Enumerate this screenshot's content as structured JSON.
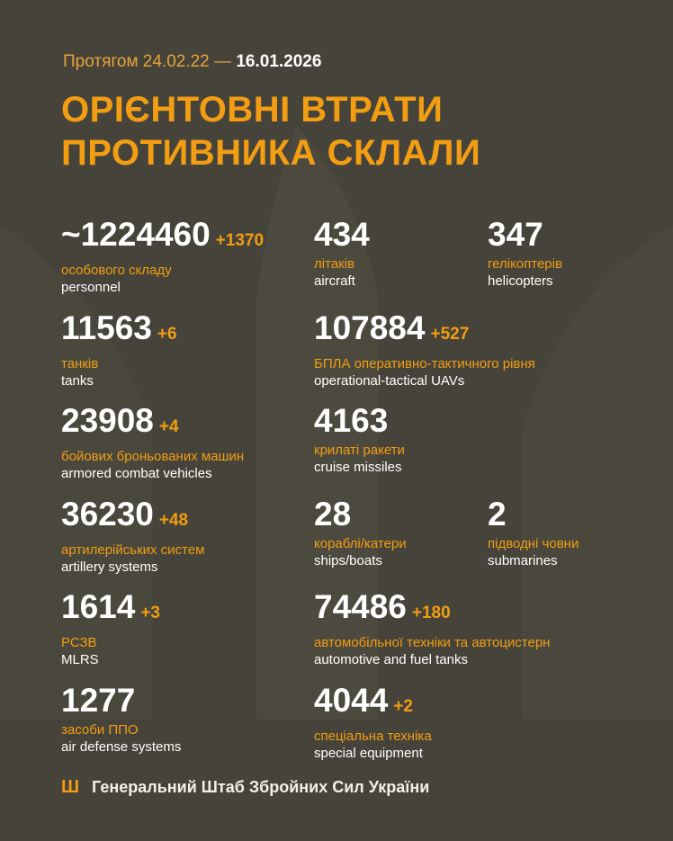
{
  "header": {
    "period_prefix": "Протягом 24.02.22 —",
    "period_end": "16.01.2026",
    "title_line1": "ОРІЄНТОВНІ ВТРАТИ",
    "title_line2": "ПРОТИВНИКА СКЛАЛИ"
  },
  "stats": [
    {
      "value": "~1224460",
      "inc": "+1370",
      "ua": "особового складу",
      "en": "personnel"
    },
    {
      "value": "434",
      "inc": "",
      "ua": "літаків",
      "en": "aircraft"
    },
    {
      "value": "347",
      "inc": "",
      "ua": "гелікоптерів",
      "en": "helicopters"
    },
    {
      "value": "11563",
      "inc": "+6",
      "ua": "танків",
      "en": "tanks"
    },
    {
      "value": "107884",
      "inc": "+527",
      "ua": "БПЛА оперативно-тактичного рівня",
      "en": "operational-tactical UAVs"
    },
    {
      "value": "23908",
      "inc": "+4",
      "ua": "бойових броньованих машин",
      "en": "armored combat vehicles"
    },
    {
      "value": "4163",
      "inc": "",
      "ua": "крилаті ракети",
      "en": "cruise missiles"
    },
    {
      "value": "36230",
      "inc": "+48",
      "ua": "артилерійських систем",
      "en": "artillery systems"
    },
    {
      "value": "28",
      "inc": "",
      "ua": "кораблі/катери",
      "en": "ships/boats"
    },
    {
      "value": "2",
      "inc": "",
      "ua": "підводні човни",
      "en": "submarines"
    },
    {
      "value": "1614",
      "inc": "+3",
      "ua": "РСЗВ",
      "en": "MLRS"
    },
    {
      "value": "74486",
      "inc": "+180",
      "ua": "автомобільної техніки та автоцистерн",
      "en": "automotive and fuel tanks"
    },
    {
      "value": "1277",
      "inc": "",
      "ua": "засоби ППО",
      "en": "air defense systems"
    },
    {
      "value": "4044",
      "inc": "+2",
      "ua": "спеціальна техніка",
      "en": "special equipment"
    }
  ],
  "footer": {
    "icon": "trident-icon",
    "text": "Генеральний Штаб Збройних Сил України"
  },
  "colors": {
    "background": "#46443a",
    "accent": "#f29d12"
  }
}
